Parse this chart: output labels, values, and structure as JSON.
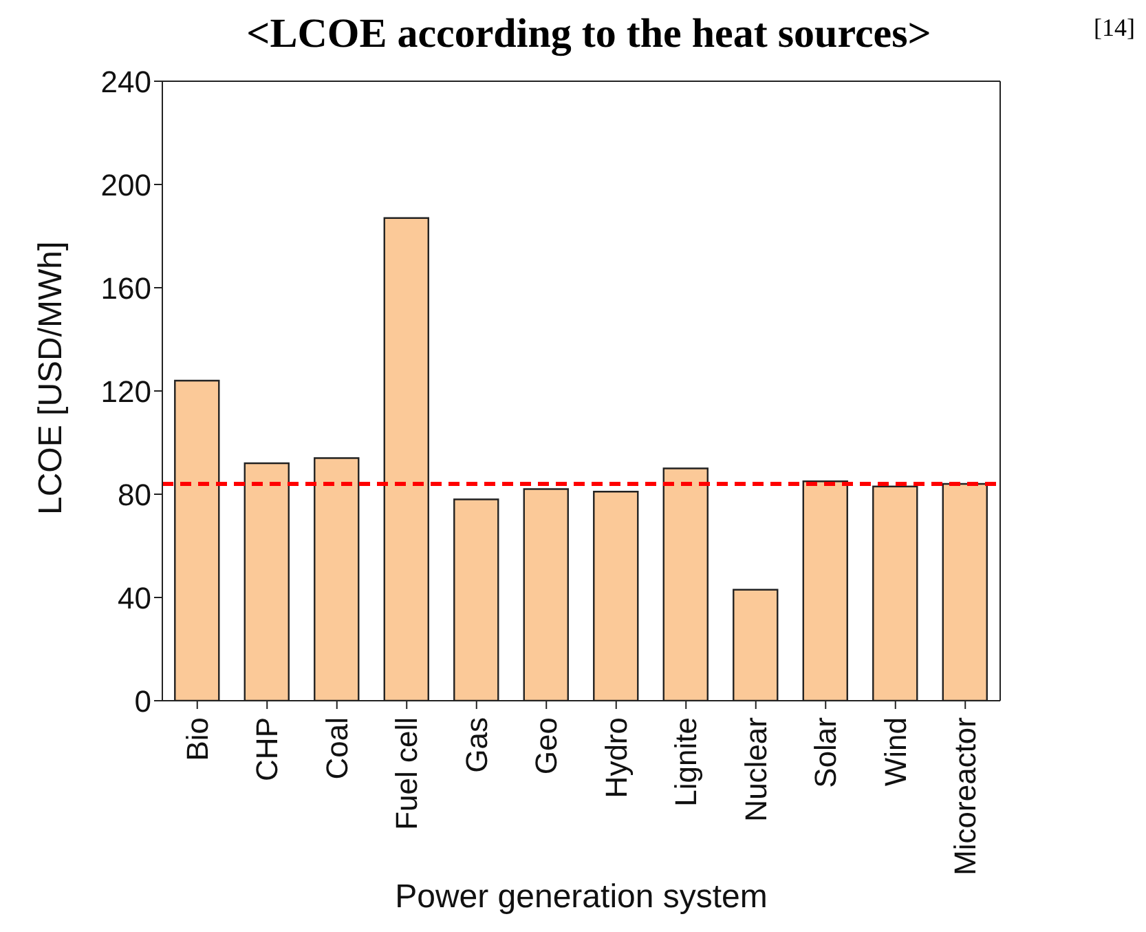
{
  "chart_data": {
    "type": "bar",
    "title": "<LCOE according to the heat sources>",
    "xlabel": "Power generation system",
    "ylabel": "LCOE [USD/MWh]",
    "categories": [
      "Bio",
      "CHP",
      "Coal",
      "Fuel cell",
      "Gas",
      "Geo",
      "Hydro",
      "Lignite",
      "Nuclear",
      "Solar",
      "Wind",
      "Micoreactor"
    ],
    "values": [
      124,
      92,
      94,
      187,
      78,
      82,
      81,
      90,
      43,
      85,
      83,
      84
    ],
    "color": "#fbc998",
    "ylim": [
      0,
      240
    ],
    "yticks": [
      0,
      40,
      80,
      120,
      160,
      200,
      240
    ],
    "grid": false,
    "ref_lines": [
      {
        "axis": "y",
        "value": 84,
        "color": "#ff0000",
        "line_style": "dashed"
      }
    ],
    "annotations": [
      "[14]"
    ]
  }
}
